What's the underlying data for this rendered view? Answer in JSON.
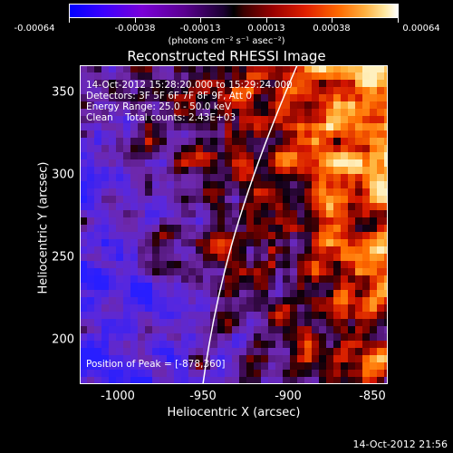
{
  "colorbar": {
    "ticks": [
      "-0.00064",
      "-0.00038",
      "-0.00013",
      "0.00013",
      "0.00038",
      "0.00064"
    ],
    "units": "(photons cm⁻² s⁻¹ asec⁻²)"
  },
  "title": "Reconstructed RHESSI Image",
  "info": {
    "line1": "14-Oct-2012 15:28:20.000 to 15:29:24.000",
    "line2": "Detectors: 3F 5F 6F 7F 8F 9F, Att 0",
    "line3": "Energy Range: 25.0 - 50.0 keV",
    "line4": "Clean    Total counts: 2.43E+03"
  },
  "peak": "Position of Peak = [-878,360]",
  "axes": {
    "xlabel": "Heliocentric X (arcsec)",
    "ylabel": "Heliocentric Y (arcsec)",
    "xticks": [
      "-1000",
      "-950",
      "-900",
      "-850"
    ],
    "yticks": [
      "350",
      "300",
      "250",
      "200"
    ]
  },
  "stamp": "14-Oct-2012 21:56"
}
